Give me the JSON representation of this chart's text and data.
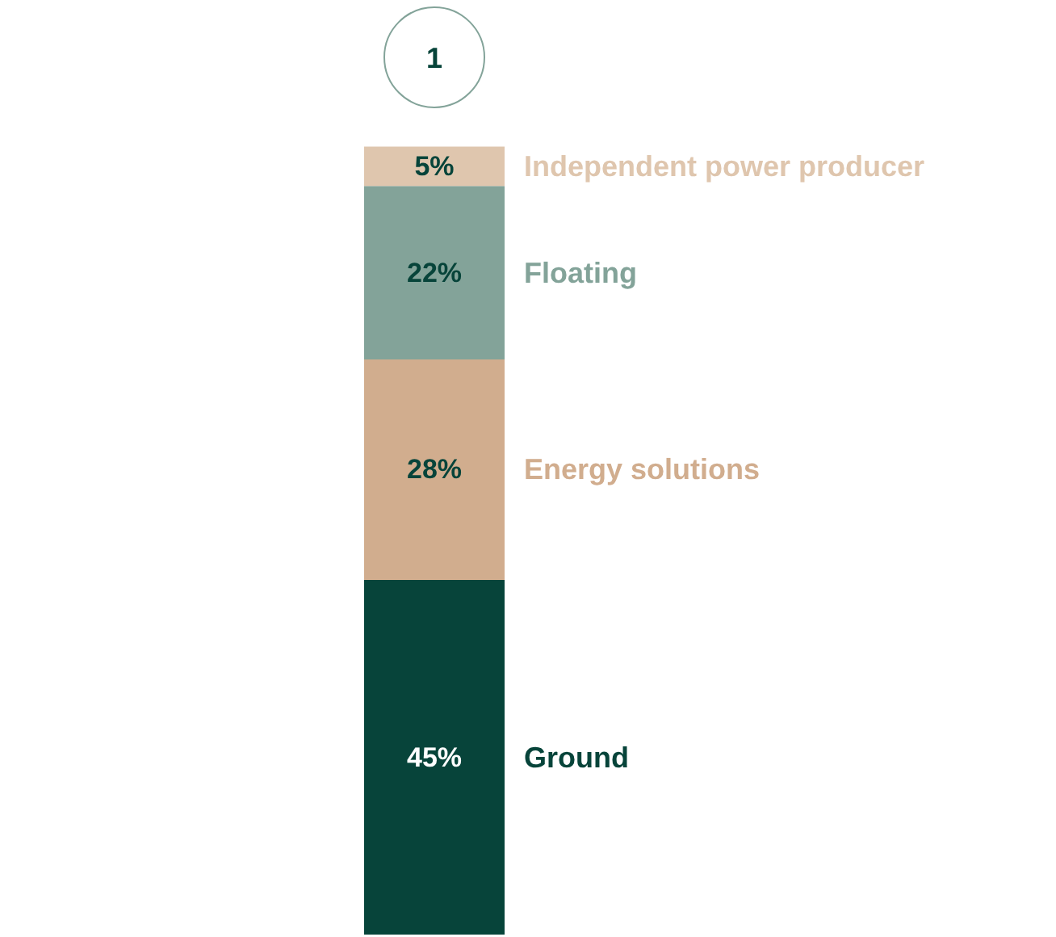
{
  "chart_data": {
    "type": "bar",
    "stacked": true,
    "categories": [
      null
    ],
    "tick_labels": false,
    "annotations": [
      "1"
    ],
    "series": [
      {
        "name": "Ground",
        "color": "#07443a",
        "values": [
          45
        ],
        "value_labels": [
          "45%"
        ]
      },
      {
        "name": "Energy solutions",
        "color": "#d1ad8e",
        "values": [
          28
        ],
        "value_labels": [
          "28%"
        ]
      },
      {
        "name": "Floating",
        "color": "#83a399",
        "values": [
          22
        ],
        "value_labels": [
          "22%"
        ]
      },
      {
        "name": "Independent power producer",
        "color": "#dfc6ae",
        "values": [
          5
        ],
        "value_labels": [
          "5%"
        ]
      }
    ]
  }
}
